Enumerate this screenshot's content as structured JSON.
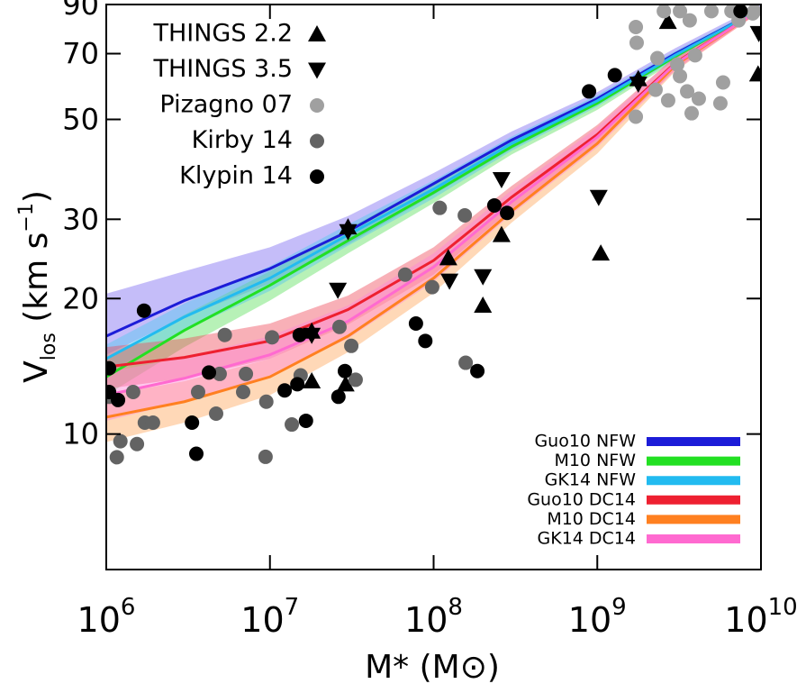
{
  "chart_data": {
    "type": "scatter",
    "x_label": "M* (M⊙)",
    "y_label": [
      {
        "text": "V"
      },
      {
        "text": "los",
        "style": "sub"
      },
      {
        "text": " (km s"
      },
      {
        "text": "−1",
        "style": "sup"
      },
      {
        "text": ")"
      }
    ],
    "xscale": "log",
    "yscale": "log",
    "xlim": [
      1000000,
      10000000000
    ],
    "ylim": [
      5,
      90
    ],
    "xticks": [
      {
        "value": 1000000,
        "label": "10",
        "exponent": "6"
      },
      {
        "value": 10000000,
        "label": "10",
        "exponent": "7"
      },
      {
        "value": 100000000,
        "label": "10",
        "exponent": "8"
      },
      {
        "value": 1000000000,
        "label": "10",
        "exponent": "9"
      },
      {
        "value": 10000000000,
        "label": "10",
        "exponent": "10"
      }
    ],
    "yticks": [
      10,
      20,
      30,
      50,
      70,
      90
    ],
    "points_legend": "upper left",
    "points_series": [
      {
        "name": "THINGS 2.2",
        "color": "#000000",
        "marker": "triangle-up",
        "x": [
          30000000,
          18000000,
          18000000,
          29000000,
          123000000,
          200000000,
          260000000,
          1050000000,
          2700000000,
          9600000000,
          1780000000
        ],
        "values": [
          28.8,
          16.9,
          13.1,
          12.9,
          24.6,
          19.3,
          27.7,
          25.2,
          82.4,
          63,
          61.5
        ]
      },
      {
        "name": "THINGS 3.5",
        "color": "#000000",
        "marker": "triangle-down",
        "x": [
          30000000,
          26000000,
          18000000,
          125000000,
          200000000,
          260000000,
          1020000000,
          1780000000,
          9700000000
        ],
        "values": [
          28.2,
          20.9,
          16.6,
          21.9,
          22.4,
          36.8,
          33.6,
          60,
          77.7
        ]
      },
      {
        "name": "Pizagno 07",
        "color": "#a0a0a0",
        "marker": "circle",
        "x": [
          1720000000,
          1740000000,
          2550000000,
          3200000000,
          3670000000,
          4980000000,
          6600000000,
          9100000000,
          2330000000,
          3080000000,
          3960000000,
          2270000000,
          3540000000,
          2710000000,
          3770000000,
          1720000000,
          4170000000,
          5650000000,
          5870000000,
          8900000000,
          7300000000,
          3200000000
        ],
        "values": [
          80.2,
          74,
          87,
          87,
          83,
          87,
          87,
          87,
          68.4,
          66.2,
          69.4,
          58.2,
          57.7,
          55.1,
          51.6,
          50.7,
          55.6,
          54.3,
          60.4,
          86,
          83,
          62.4
        ]
      },
      {
        "name": "Kirby 14",
        "color": "#636363",
        "marker": "circle",
        "x": [
          1040000,
          1160000,
          1220000,
          1460000,
          1540000,
          1720000,
          1930000,
          3640000,
          4690000,
          4930000,
          5300000,
          6860000,
          7130000,
          9400000,
          9500000,
          10300000,
          13600000,
          15400000,
          26600000,
          31400000,
          33400000,
          67000000,
          98000000,
          109000000,
          155000000,
          157000000
        ],
        "values": [
          12.1,
          8.88,
          9.64,
          12.4,
          9.5,
          10.6,
          10.6,
          12.4,
          11.1,
          13.6,
          16.6,
          12.4,
          13.6,
          8.9,
          11.8,
          16.4,
          10.5,
          13.5,
          17.3,
          15.7,
          13.2,
          22.6,
          21.2,
          31.8,
          30.6,
          14.4
        ]
      },
      {
        "name": "Klypin 14",
        "color": "#000000",
        "marker": "circle",
        "x": [
          1040000,
          1040000,
          1180000,
          1700000,
          3340000,
          3550000,
          4240000,
          12300000,
          14700000,
          15200000,
          16600000,
          26200000,
          28700000,
          78000000,
          89000000,
          185000000,
          235000000,
          281000000,
          890000000,
          1280000000,
          7500000000
        ],
        "values": [
          14.0,
          12.4,
          11.9,
          18.8,
          10.6,
          9.04,
          13.7,
          12.5,
          12.9,
          16.6,
          10.7,
          12.1,
          13.8,
          17.6,
          16.1,
          13.8,
          32.2,
          31.0,
          57.7,
          62.7,
          87
        ]
      }
    ],
    "models_legend": "lower right",
    "x": [
      1000000,
      3000000,
      10000000,
      30000000,
      100000000,
      300000000,
      1000000000,
      3000000000,
      10000000000
    ],
    "series": [
      {
        "name": "Guo10  NFW",
        "color": "#1c1cd8",
        "band_color": "#7f6cf2",
        "values": [
          16.5,
          19.8,
          23.3,
          28.2,
          36,
          45,
          55.6,
          70,
          88
        ],
        "lower": [
          15.0,
          18.2,
          21.6,
          26.4,
          34,
          43,
          54,
          68.5,
          87
        ],
        "upper": [
          20.5,
          23,
          26,
          30.5,
          38,
          47,
          57.5,
          72,
          90
        ]
      },
      {
        "name": "M10  NFW",
        "color": "#22e022",
        "band_color": "#5fe05f",
        "values": [
          13.4,
          17,
          21.4,
          26.9,
          34.4,
          43.5,
          54.3,
          69,
          88
        ],
        "lower": [
          12.2,
          15.6,
          19.8,
          25.2,
          32.6,
          41.8,
          52.5,
          67.5,
          87
        ],
        "upper": [
          14.7,
          18.4,
          23,
          28.6,
          36.2,
          45.2,
          56,
          70.5,
          89
        ]
      },
      {
        "name": "GK14  NFW",
        "color": "#22bbf0",
        "band_color": "#55c8f0",
        "values": [
          14.7,
          18.2,
          22.2,
          27.7,
          35,
          44.2,
          55,
          69.5,
          88
        ],
        "lower": [
          13.6,
          17,
          20.8,
          26.2,
          33.4,
          42.6,
          53.4,
          68,
          87
        ],
        "upper": [
          15.8,
          19.5,
          23.6,
          29.2,
          36.6,
          45.8,
          56.6,
          71,
          89
        ]
      },
      {
        "name": "Guo10  DC14",
        "color": "#ee2030",
        "band_color": "#f05060",
        "values": [
          14.1,
          14.8,
          16.1,
          18.9,
          24.3,
          33.6,
          46.3,
          66.8,
          88
        ],
        "lower": [
          12.6,
          13.3,
          14.7,
          17.5,
          22.6,
          31.6,
          44,
          64.5,
          87
        ],
        "upper": [
          15.6,
          16.3,
          17.6,
          20.3,
          26,
          35.6,
          48.6,
          69,
          89
        ]
      },
      {
        "name": "M10  DC14",
        "color": "#ff8020",
        "band_color": "#ffa860",
        "values": [
          10.9,
          11.8,
          13.4,
          16.5,
          22.2,
          31.3,
          44.2,
          66,
          88
        ],
        "lower": [
          9.6,
          10.6,
          12.2,
          15.2,
          20.6,
          29.5,
          42,
          64,
          87
        ],
        "upper": [
          12.2,
          13.1,
          14.7,
          17.8,
          23.8,
          33.1,
          46.4,
          68,
          89
        ]
      },
      {
        "name": "GK14  DC14",
        "color": "#ff6ad0",
        "band_color": "#ff88d8",
        "values": [
          12.2,
          13.3,
          15.0,
          17.8,
          23.5,
          32.8,
          45.7,
          66.5,
          88
        ],
        "lower": [
          10.7,
          11.8,
          13.5,
          16.3,
          21.8,
          30.8,
          43.4,
          64.2,
          87
        ],
        "upper": [
          13.7,
          14.8,
          16.5,
          19.3,
          25.2,
          34.8,
          48,
          68.8,
          89
        ]
      }
    ]
  }
}
